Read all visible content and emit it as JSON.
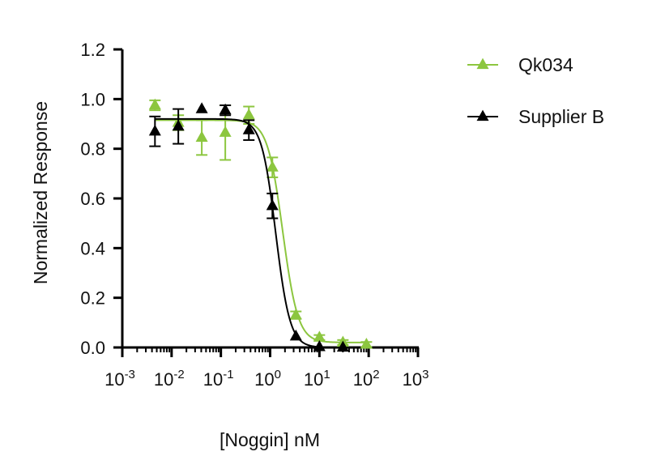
{
  "chart_data": {
    "type": "scatter",
    "title": "",
    "xlabel": "[Noggin] nM",
    "ylabel": "Normalized Response",
    "x_scale": "log",
    "xlim": [
      0.001,
      1000
    ],
    "ylim": [
      0,
      1.2
    ],
    "x_ticks": [
      {
        "base": "10",
        "exp": "-3",
        "value": 0.001
      },
      {
        "base": "10",
        "exp": "-2",
        "value": 0.01
      },
      {
        "base": "10",
        "exp": "-1",
        "value": 0.1
      },
      {
        "base": "10",
        "exp": "0",
        "value": 1
      },
      {
        "base": "10",
        "exp": "1",
        "value": 10
      },
      {
        "base": "10",
        "exp": "2",
        "value": 100
      },
      {
        "base": "10",
        "exp": "3",
        "value": 1000
      }
    ],
    "y_ticks": [
      {
        "label": "0.0",
        "value": 0
      },
      {
        "label": "0.2",
        "value": 0.2
      },
      {
        "label": "0.4",
        "value": 0.4
      },
      {
        "label": "0.6",
        "value": 0.6
      },
      {
        "label": "0.8",
        "value": 0.8
      },
      {
        "label": "1.0",
        "value": 1.0
      },
      {
        "label": "1.2",
        "value": 1.2
      }
    ],
    "grid": false,
    "legend": "right",
    "series": [
      {
        "name": "Qk034",
        "color": "#8cc63f",
        "marker": "triangle",
        "x": [
          0.0046,
          0.0137,
          0.041,
          0.123,
          0.37,
          1.11,
          3.33,
          10,
          30,
          90
        ],
        "y": [
          0.975,
          0.905,
          0.845,
          0.865,
          0.935,
          0.725,
          0.13,
          0.04,
          0.02,
          0.012
        ],
        "error": [
          0.02,
          0.03,
          0.07,
          0.11,
          0.035,
          0.04,
          0.015,
          0.01,
          0.01,
          0.01
        ],
        "fit": {
          "model": "4PL",
          "top": 0.915,
          "bottom": 0.02,
          "ec50": 1.8,
          "hill": -2.8
        }
      },
      {
        "name": "Supplier B",
        "color": "#000000",
        "marker": "triangle",
        "x": [
          0.0046,
          0.0137,
          0.041,
          0.123,
          0.37,
          1.11,
          3.33,
          10,
          30
        ],
        "y": [
          0.87,
          0.89,
          0.96,
          0.955,
          0.875,
          0.57,
          0.045,
          0.002,
          0.0
        ],
        "error": [
          0.06,
          0.07,
          0.0,
          0.02,
          0.04,
          0.05,
          0.0,
          0.0,
          0.0
        ],
        "fit": {
          "model": "4PL",
          "top": 0.92,
          "bottom": 0.0,
          "ec50": 1.3,
          "hill": -3.0
        }
      }
    ]
  }
}
